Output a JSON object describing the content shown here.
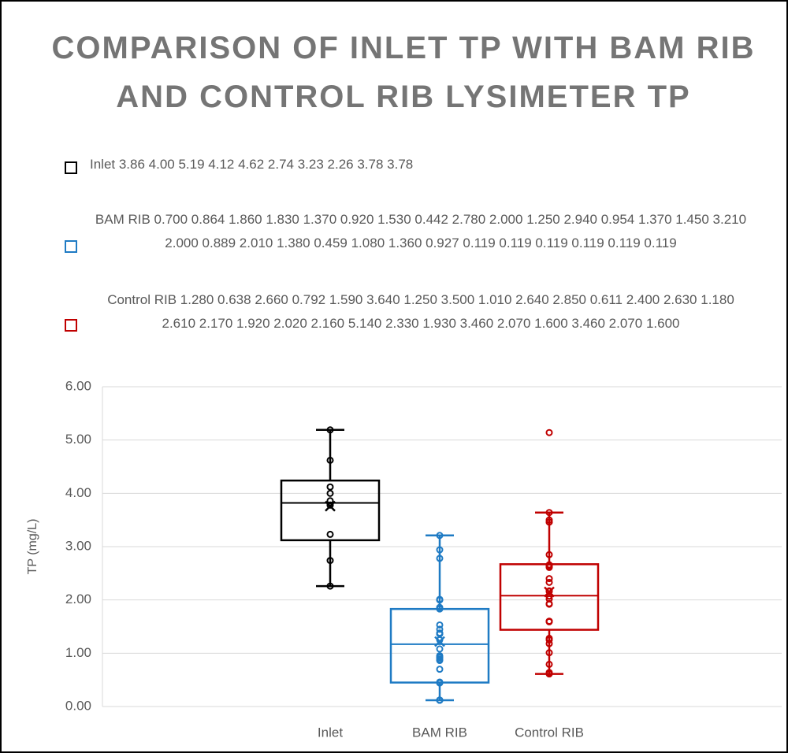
{
  "chart_data": {
    "type": "box",
    "title": "COMPARISON OF INLET TP WITH BAM RIB AND CONTROL RIB LYSIMETER TP",
    "ylabel": "TP (mg/L)",
    "categories": [
      "Inlet",
      "BAM RIB",
      "Control RIB"
    ],
    "ylim": [
      0,
      6
    ],
    "yticks": [
      {
        "value": 0,
        "label": "0.00"
      },
      {
        "value": 1,
        "label": "1.00"
      },
      {
        "value": 2,
        "label": "2.00"
      },
      {
        "value": 3,
        "label": "3.00"
      },
      {
        "value": 4,
        "label": "4.00"
      },
      {
        "value": 5,
        "label": "5.00"
      },
      {
        "value": 6,
        "label": "6.00"
      }
    ],
    "grid": true,
    "legend": "top",
    "series": [
      {
        "name": "Inlet 3.86 4.00 5.19 4.12 4.62 2.74 3.23 2.26 3.78 3.78",
        "color": "#000000",
        "values": [
          3.86,
          4.0,
          5.19,
          4.12,
          4.62,
          2.74,
          3.23,
          2.26,
          3.78,
          3.78
        ],
        "whisker_low": 2.26,
        "q1": 3.12,
        "median": 3.82,
        "q3": 4.24,
        "whisker_high": 5.19,
        "mean": 3.76
      },
      {
        "name": "BAM RIB 0.700 0.864 1.860 1.830 1.370 0.920 1.530 0.442 2.780 2.000 1.250 2.940 0.954 1.370 1.450 3.210 2.000 0.889 2.010 1.380 0.459 1.080 1.360 0.927 0.119 0.119 0.119 0.119 0.119 0.119",
        "color": "#1f7bc4",
        "values": [
          0.7,
          0.864,
          1.86,
          1.83,
          1.37,
          0.92,
          1.53,
          0.442,
          2.78,
          2.0,
          1.25,
          2.94,
          0.954,
          1.37,
          1.45,
          3.21,
          2.0,
          0.889,
          2.01,
          1.38,
          0.459,
          1.08,
          1.36,
          0.927,
          0.119,
          0.119,
          0.119,
          0.119,
          0.119,
          0.119
        ],
        "whisker_low": 0.119,
        "q1": 0.45,
        "median": 1.17,
        "q3": 1.83,
        "whisker_high": 3.21,
        "mean": 1.22
      },
      {
        "name": "Control RIB 1.280 0.638 2.660 0.792 1.590 3.640 1.250 3.500 1.010 2.640 2.850 0.611 2.400 2.630 1.180 2.610 2.170 1.920 2.020 2.160 5.140 2.330 1.930 3.460 2.070 1.600 3.460 2.070 1.600",
        "color": "#c00000",
        "values": [
          1.28,
          0.638,
          2.66,
          0.792,
          1.59,
          3.64,
          1.25,
          3.5,
          1.01,
          2.64,
          2.85,
          0.611,
          2.4,
          2.63,
          1.18,
          2.61,
          2.17,
          1.92,
          2.02,
          2.16,
          5.14,
          2.33,
          1.93,
          3.46,
          2.07,
          1.6,
          3.46,
          2.07,
          1.6
        ],
        "whisker_low": 0.611,
        "q1": 1.44,
        "median": 2.08,
        "q3": 2.67,
        "whisker_high": 3.64,
        "mean": 2.15
      }
    ]
  }
}
